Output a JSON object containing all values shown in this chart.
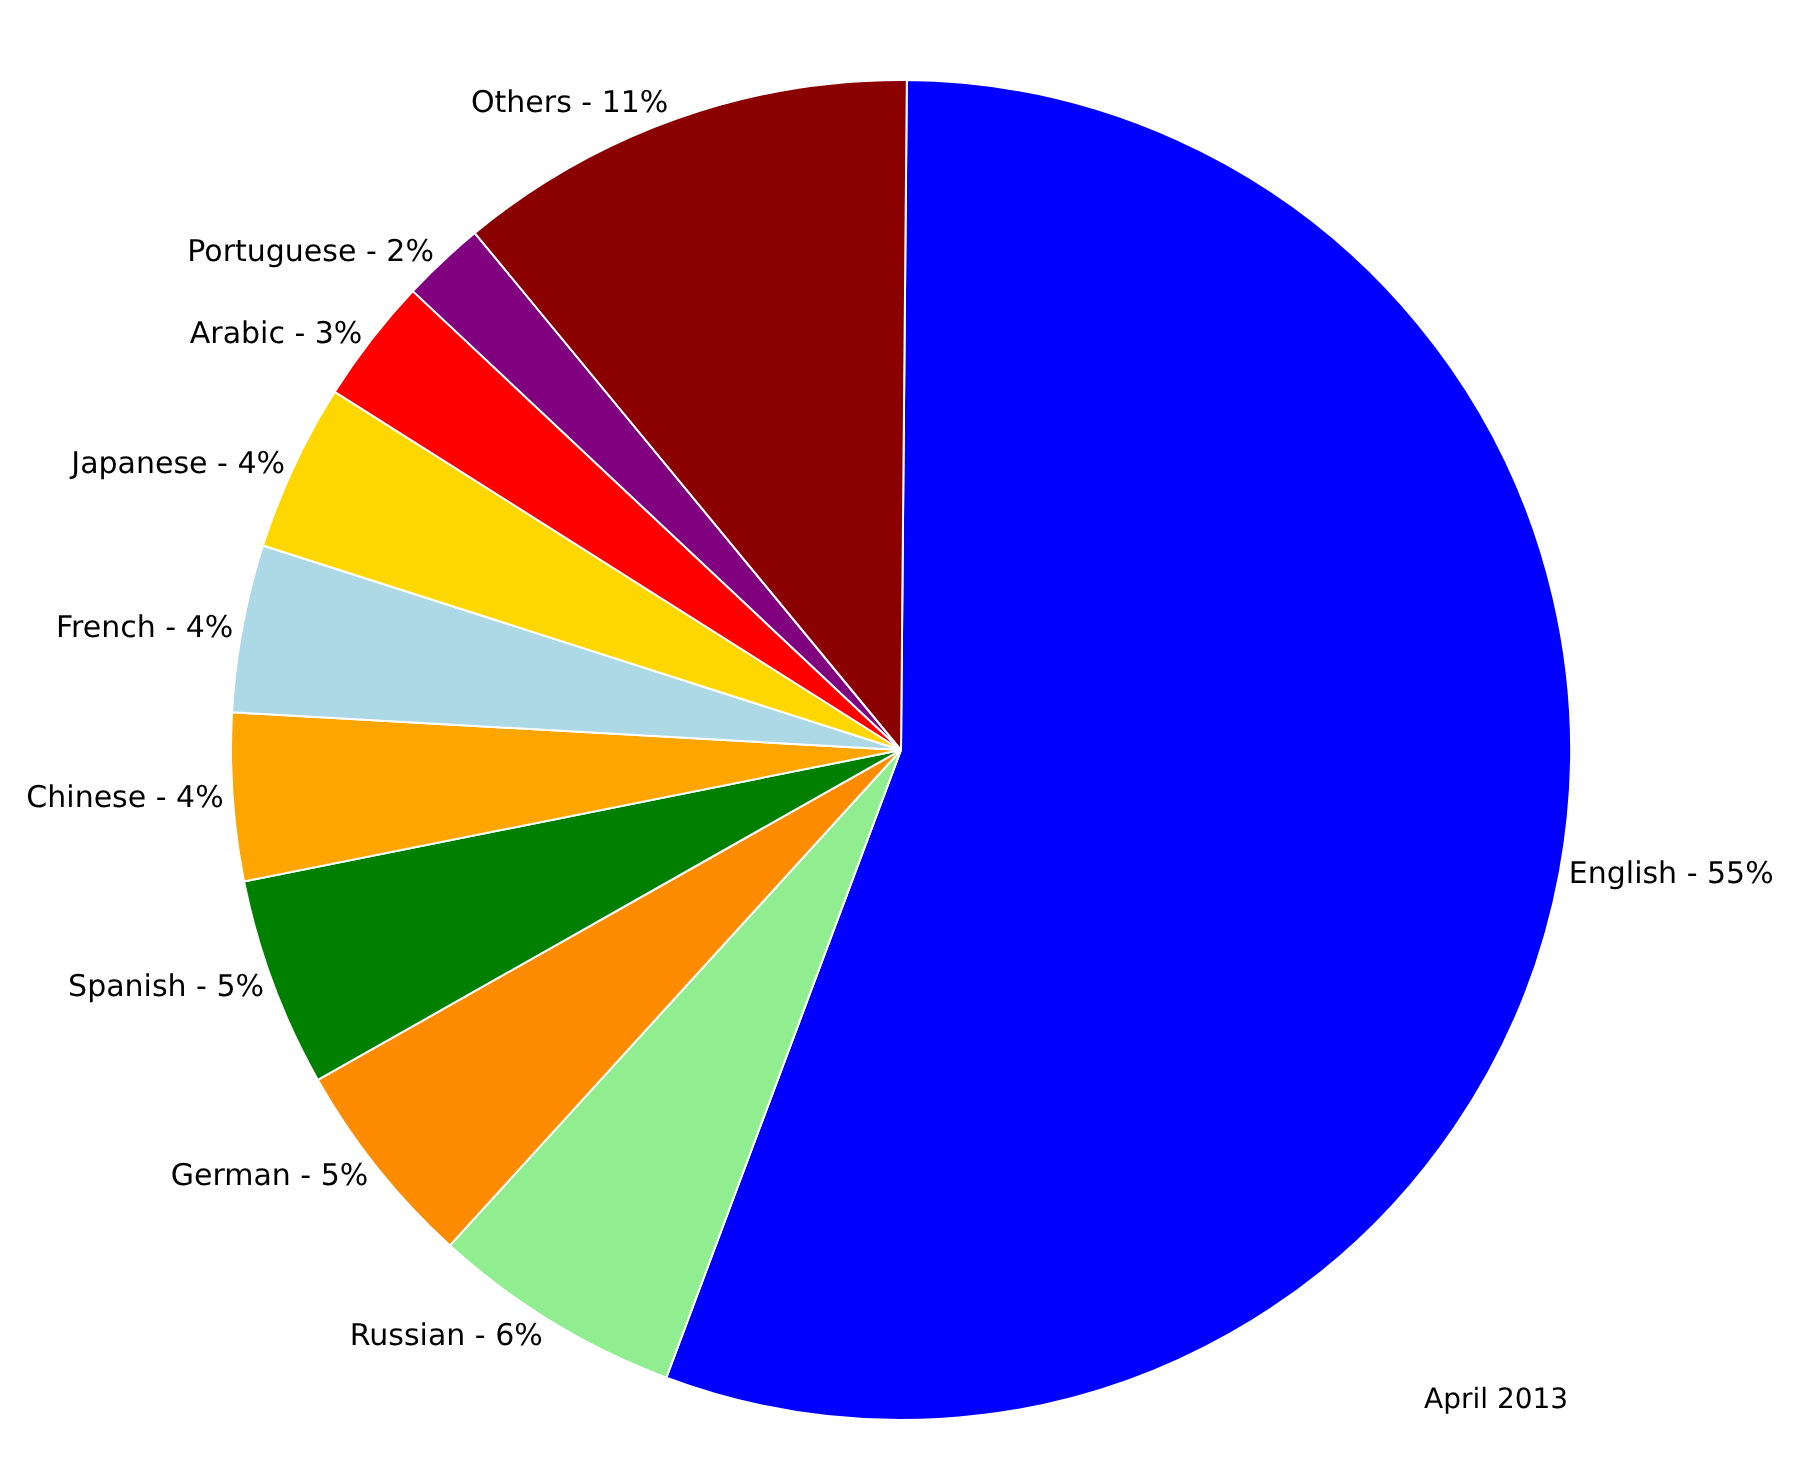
{
  "chart_data": {
    "type": "pie",
    "categories": [
      "English -",
      "Russian -",
      "German -",
      "Spanish -",
      "Chinese -",
      "French -",
      "Japanese -",
      "Arabic -",
      "Portuguese -",
      "Others -"
    ],
    "values": [
      55,
      6,
      5,
      5,
      4,
      4,
      4,
      3,
      2,
      11
    ],
    "colors": [
      "#0000ff",
      "#90ee90",
      "#ff8c00",
      "#008000",
      "#ffa500",
      "#add8e6",
      "#ffd700",
      "#ff0000",
      "#800080",
      "#8b0000"
    ],
    "value_labels": [
      "55%",
      "6%",
      "5%",
      "5%",
      "4%",
      "4%",
      "4%",
      "3%",
      "2%",
      "11%"
    ],
    "legend": false,
    "annotations": [
      "April 2013"
    ]
  }
}
